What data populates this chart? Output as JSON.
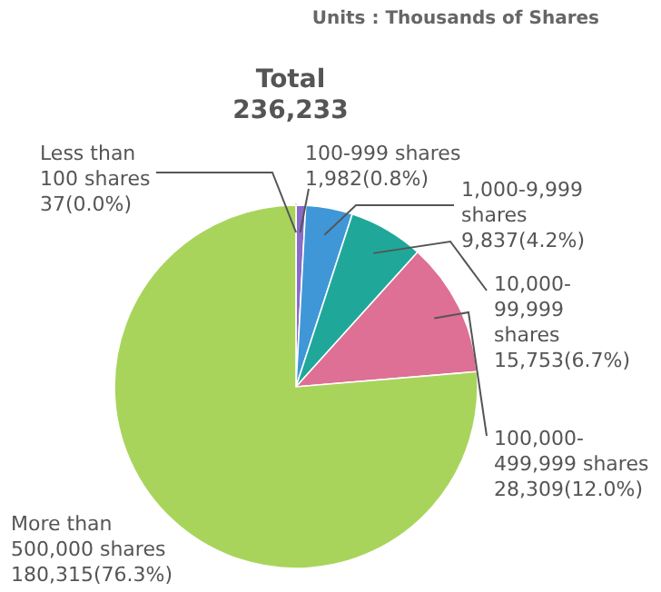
{
  "chart_data": {
    "type": "pie",
    "title": "Total\n236,233",
    "annotations": [
      "Units : Thousands of Shares"
    ],
    "categories": [
      "Less than 100 shares",
      "100-999 shares",
      "1,000-9,999 shares",
      "10,000-99,999 shares",
      "100,000-499,999 shares",
      "More than 500,000 shares"
    ],
    "values": [
      37,
      1982,
      9837,
      15753,
      28309,
      180315
    ],
    "colors": [
      "#7b6fc4",
      "#8a6cc8",
      "#3f97d8",
      "#1fa89a",
      "#de6f95",
      "#a8d45c"
    ],
    "value_labels": [
      "37(0.0%)",
      "1,982(0.8%)",
      "9,837(4.2%)",
      "15,753(6.7%)",
      "28,309(12.0%)",
      "180,315(76.3%)"
    ],
    "legend": false
  }
}
